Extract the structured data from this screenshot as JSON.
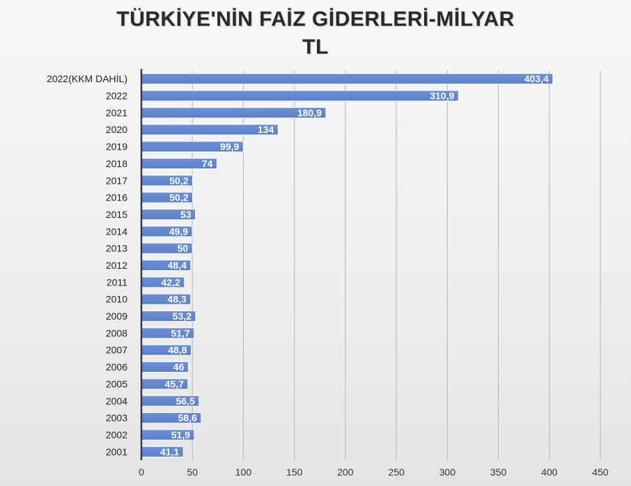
{
  "chart_data": {
    "type": "bar",
    "orientation": "horizontal",
    "title_lines": [
      "TÜRKİYE'NİN FAİZ GİDERLERİ-MİLYAR",
      "TL"
    ],
    "categories": [
      "2022(KKM DAHİL)",
      "2022",
      "2021",
      "2020",
      "2019",
      "2018",
      "2017",
      "2016",
      "2015",
      "2014",
      "2013",
      "2012",
      "2011",
      "2010",
      "2009",
      "2008",
      "2007",
      "2006",
      "2005",
      "2004",
      "2003",
      "2002",
      "2001"
    ],
    "values": [
      403.4,
      310.9,
      180.9,
      134,
      99.9,
      74,
      50.2,
      50.2,
      53,
      49.9,
      50,
      48.4,
      42.2,
      48.3,
      53.2,
      51.7,
      48.8,
      46,
      45.7,
      56.5,
      58.6,
      51.9,
      41.1
    ],
    "value_labels": [
      "403,4",
      "310,9",
      "180,9",
      "134",
      "99,9",
      "74",
      "50,2",
      "50,2",
      "53",
      "49,9",
      "50",
      "48,4",
      "42,2",
      "48,3",
      "53,2",
      "51,7",
      "48,8",
      "46",
      "45,7",
      "56,5",
      "58,6",
      "51,9",
      "41,1"
    ],
    "x_ticks": [
      "0",
      "50",
      "100",
      "150",
      "200",
      "250",
      "300",
      "350",
      "400",
      "450"
    ],
    "xlim": [
      0,
      450
    ],
    "grid": true,
    "legend": "none",
    "bar_color": "#5b80c9",
    "grid_color": "#bdbdbd"
  }
}
